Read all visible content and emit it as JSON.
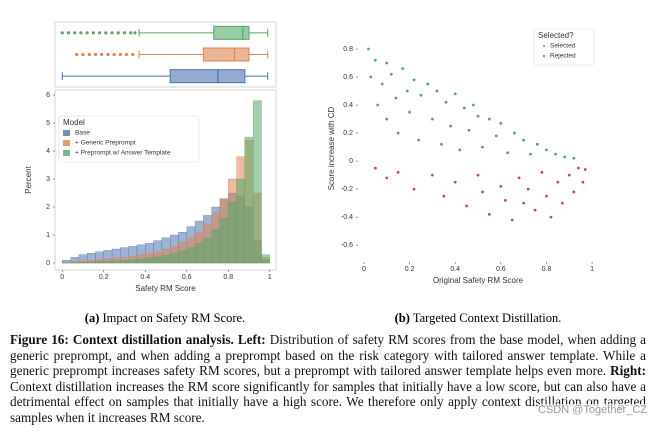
{
  "chart_data": [
    {
      "type": "box",
      "xlim": [
        -0.035,
        1.03
      ],
      "series": [
        {
          "color": "#55a868",
          "min": 0.37,
          "q1": 0.73,
          "median": 0.87,
          "q3": 0.9,
          "max": 0.99,
          "outliers": [
            0.0,
            0.03,
            0.06,
            0.09,
            0.12,
            0.15,
            0.18,
            0.21,
            0.24,
            0.27,
            0.3,
            0.33,
            0.35
          ]
        },
        {
          "color": "#dd8452",
          "min": 0.37,
          "q1": 0.68,
          "median": 0.83,
          "q3": 0.9,
          "max": 0.99,
          "outliers": [
            0.07,
            0.1,
            0.13,
            0.16,
            0.19,
            0.22,
            0.25,
            0.28,
            0.31,
            0.34
          ]
        },
        {
          "color": "#4c72b0",
          "min": 0.0,
          "q1": 0.52,
          "median": 0.75,
          "q3": 0.88,
          "max": 0.99,
          "outliers": []
        }
      ]
    },
    {
      "type": "histogram",
      "x_label": "Safety RM Score",
      "y_label": "Percent",
      "legend_title": "Model",
      "legend": "upper left",
      "xlim": [
        -0.035,
        1.03
      ],
      "ylim": [
        -0.25,
        6.18
      ],
      "xticks": [
        0,
        0.2,
        0.4,
        0.6,
        0.8,
        1
      ],
      "yticks": [
        0,
        1,
        2,
        3,
        4,
        5,
        6
      ],
      "bins": [
        0,
        0.04,
        0.08,
        0.12,
        0.16,
        0.2,
        0.24,
        0.28,
        0.32,
        0.36,
        0.4,
        0.44,
        0.48,
        0.52,
        0.56,
        0.6,
        0.64,
        0.68,
        0.72,
        0.76,
        0.8,
        0.84,
        0.88,
        0.92,
        0.96,
        1
      ],
      "series": [
        {
          "name": "Base",
          "color": "#4c72b0",
          "values": [
            0.1,
            0.2,
            0.3,
            0.35,
            0.4,
            0.45,
            0.5,
            0.55,
            0.6,
            0.65,
            0.7,
            0.8,
            0.9,
            1.0,
            1.1,
            1.3,
            1.5,
            1.7,
            2.0,
            2.3,
            2.5,
            2.4,
            2.0,
            0.8,
            0.1
          ]
        },
        {
          "name": "+ Generic Preprompt",
          "color": "#dd8452",
          "values": [
            0.02,
            0.05,
            0.08,
            0.1,
            0.12,
            0.15,
            0.18,
            0.2,
            0.25,
            0.3,
            0.35,
            0.4,
            0.5,
            0.6,
            0.75,
            0.9,
            1.1,
            1.4,
            1.8,
            2.3,
            3.0,
            3.8,
            4.4,
            2.5,
            0.2
          ]
        },
        {
          "name": "+ Preprompt w/ Answer Template",
          "color": "#55a868",
          "values": [
            0.01,
            0.02,
            0.03,
            0.04,
            0.05,
            0.06,
            0.08,
            0.1,
            0.12,
            0.15,
            0.18,
            0.22,
            0.28,
            0.35,
            0.45,
            0.55,
            0.7,
            0.9,
            1.2,
            1.6,
            2.2,
            3.0,
            4.5,
            5.8,
            0.3
          ]
        }
      ]
    },
    {
      "type": "scatter",
      "x_label": "Original Safety RM Score",
      "y_label": "Score increase with CD",
      "legend_title": "Selected?",
      "legend": "upper right",
      "xlim": [
        -0.026,
        1.026
      ],
      "ylim": [
        -0.72,
        0.9
      ],
      "xticks": [
        0,
        0.2,
        0.4,
        0.6,
        0.8,
        1
      ],
      "yticks": [
        0.8,
        0.6,
        0.4,
        0.2,
        0,
        -0.2,
        -0.4,
        -0.6
      ],
      "series": [
        {
          "name": "Selected",
          "color": "#55a868",
          "x": [
            0.02,
            0.03,
            0.05,
            0.06,
            0.08,
            0.1,
            0.1,
            0.12,
            0.14,
            0.15,
            0.17,
            0.19,
            0.2,
            0.22,
            0.24,
            0.25,
            0.28,
            0.3,
            0.32,
            0.34,
            0.36,
            0.38,
            0.4,
            0.42,
            0.44,
            0.46,
            0.48,
            0.5,
            0.52,
            0.55,
            0.58,
            0.6,
            0.63,
            0.66,
            0.7,
            0.73,
            0.76,
            0.8,
            0.84,
            0.88,
            0.92
          ],
          "values": [
            0.8,
            0.6,
            0.72,
            0.4,
            0.55,
            0.7,
            0.3,
            0.62,
            0.45,
            0.2,
            0.66,
            0.5,
            0.35,
            0.58,
            0.15,
            0.47,
            0.55,
            0.3,
            0.5,
            0.12,
            0.42,
            0.25,
            0.48,
            0.08,
            0.38,
            0.22,
            0.4,
            0.32,
            0.1,
            0.3,
            0.18,
            0.27,
            0.06,
            0.2,
            0.15,
            0.05,
            0.12,
            0.08,
            0.05,
            0.03,
            0.02
          ]
        },
        {
          "name": "Rejected",
          "color": "#c44e52",
          "x": [
            0.05,
            0.1,
            0.15,
            0.22,
            0.3,
            0.35,
            0.4,
            0.45,
            0.5,
            0.52,
            0.55,
            0.6,
            0.62,
            0.65,
            0.68,
            0.7,
            0.72,
            0.75,
            0.78,
            0.8,
            0.82,
            0.85,
            0.87,
            0.9,
            0.92,
            0.94,
            0.96,
            0.97
          ],
          "values": [
            -0.05,
            -0.12,
            -0.08,
            -0.2,
            -0.1,
            -0.25,
            -0.15,
            -0.32,
            -0.1,
            -0.22,
            -0.38,
            -0.18,
            -0.28,
            -0.42,
            -0.12,
            -0.3,
            -0.2,
            -0.35,
            -0.08,
            -0.25,
            -0.4,
            -0.15,
            -0.3,
            -0.1,
            -0.22,
            -0.05,
            -0.15,
            -0.06
          ]
        }
      ]
    }
  ],
  "subcaptions": [
    {
      "label": "(a)",
      "text": "Impact on Safety RM Score."
    },
    {
      "label": "(b)",
      "text": "Targeted Context Distillation."
    }
  ],
  "caption": {
    "figure": "Figure 16:",
    "title": "Context distillation analysis.",
    "left": "Left:",
    "left_text": "Distribution of safety RM scores from the base model, when adding a generic preprompt, and when adding a preprompt based on the risk category with tailored answer template. While a generic preprompt increases safety RM scores, but a preprompt with tailored answer template helps even more.",
    "right": "Right:",
    "right_text": "Context distillation increases the RM score significantly for samples that initially have a low score, but can also have a detrimental effect on samples that initially have a high score. We therefore only apply context distillation on targeted samples when it increases RM score."
  },
  "watermark": "CSDN @Together_CZ"
}
